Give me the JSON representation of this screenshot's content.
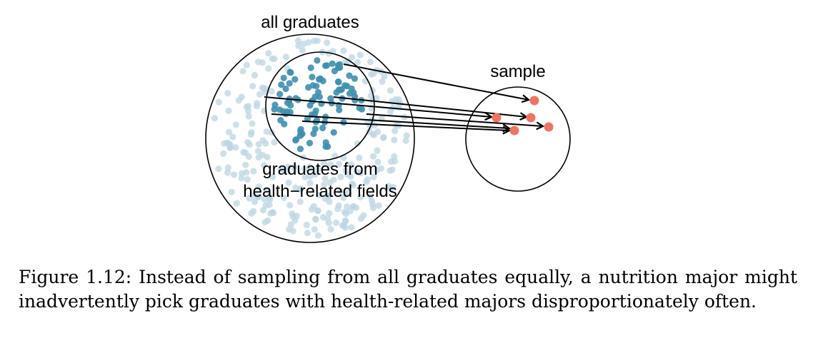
{
  "labels": {
    "all_graduates": "all graduates",
    "health_line1": "graduates from",
    "health_line2": "health−related fields",
    "sample": "sample"
  },
  "colors": {
    "background_dot": "#bcd6e3",
    "health_dot": "#3f8fb0",
    "sample_dot": "#f07462",
    "outline": "#000000"
  },
  "caption": "Figure 1.12: Instead of sampling from all graduates equally, a nutrition major might inadvertently pick graduates with health-related majors disproportionately often."
}
